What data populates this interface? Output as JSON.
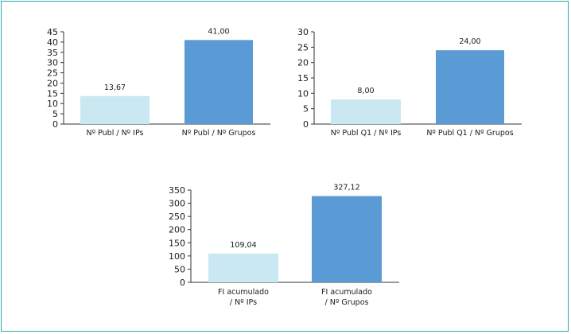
{
  "chart_data": [
    {
      "type": "bar",
      "categories": [
        "Nº Publ / Nº IPs",
        "Nº Publ / Nº Grupos"
      ],
      "values": [
        13.67,
        41.0
      ],
      "value_labels": [
        "13,67",
        "41,00"
      ],
      "ylim": [
        0,
        45
      ],
      "yticks": [
        0,
        5,
        10,
        15,
        20,
        25,
        30,
        35,
        40,
        45
      ],
      "colors": [
        "#c9e8f1",
        "#5b9bd5"
      ],
      "grid": false
    },
    {
      "type": "bar",
      "categories": [
        "Nº Publ Q1 / Nº IPs",
        "Nº Publ Q1 / Nº Grupos"
      ],
      "values": [
        8.0,
        24.0
      ],
      "value_labels": [
        "8,00",
        "24,00"
      ],
      "ylim": [
        0,
        30
      ],
      "yticks": [
        0,
        5,
        10,
        15,
        20,
        25,
        30
      ],
      "colors": [
        "#c9e8f1",
        "#5b9bd5"
      ],
      "grid": false
    },
    {
      "type": "bar",
      "categories": [
        "FI acumulado\n/ Nº IPs",
        "FI acumulado\n/ Nº Grupos"
      ],
      "values": [
        109.04,
        327.12
      ],
      "value_labels": [
        "109,04",
        "327,12"
      ],
      "ylim": [
        0,
        350
      ],
      "yticks": [
        0,
        50,
        100,
        150,
        200,
        250,
        300,
        350
      ],
      "colors": [
        "#c9e8f1",
        "#5b9bd5"
      ],
      "grid": false
    }
  ],
  "colors": {
    "frame_border": "#2aa7a8",
    "axis": "#333333"
  }
}
